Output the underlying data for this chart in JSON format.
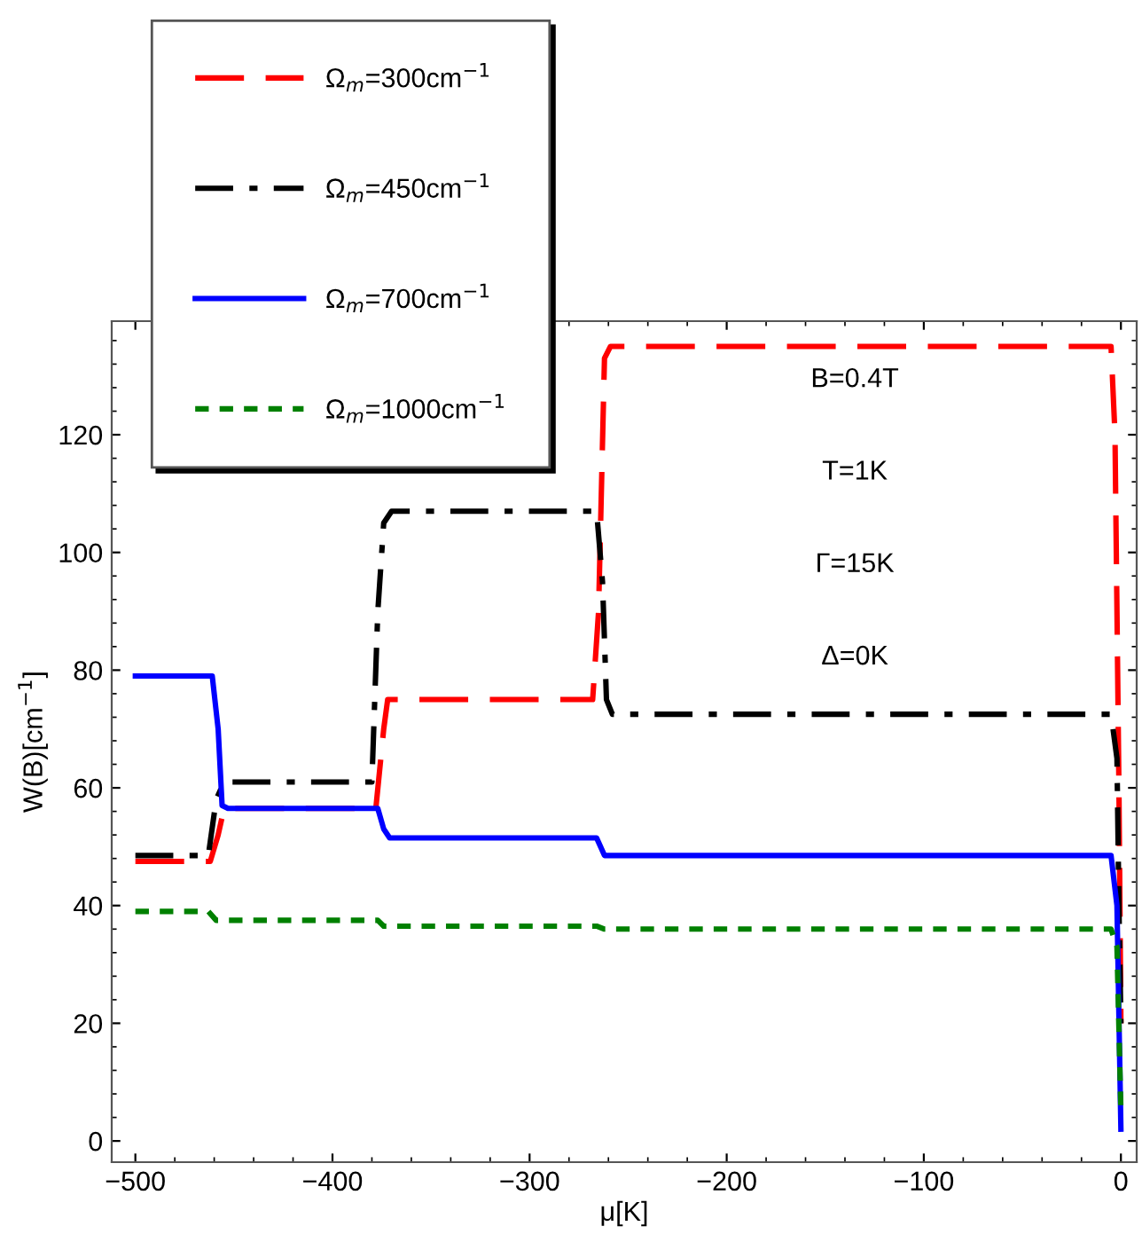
{
  "chart_data": {
    "type": "line",
    "xlabel": "μ[K]",
    "ylabel": "W(B)[cm$^{−1}$]",
    "xlim": [
      -512,
      8
    ],
    "ylim": [
      -3.6,
      139.3
    ],
    "xticks": [
      {
        "value": -500,
        "label": "−500"
      },
      {
        "value": -400,
        "label": "−400"
      },
      {
        "value": -300,
        "label": "−300"
      },
      {
        "value": -200,
        "label": "−200"
      },
      {
        "value": -100,
        "label": "−100"
      },
      0
    ],
    "yticks": [
      0,
      20,
      40,
      60,
      80,
      100,
      120
    ],
    "grid": false,
    "legend": "top left",
    "marker": "none",
    "annotations": [
      "B=0.4T",
      "T=1K",
      "Γ=15K",
      "Δ=0K"
    ],
    "series": [
      {
        "name": "Ω$_{m}$=300cm$^{−1}$",
        "color": "#ff0000",
        "line_style": "dashed",
        "x": [
          -500,
          -462,
          -458,
          -455,
          -378,
          -374,
          -372,
          -268,
          -265,
          -262,
          -259,
          -5,
          -3,
          -1,
          0
        ],
        "values": [
          47.5,
          47.5,
          52,
          56.5,
          56.5,
          70,
          75,
          75,
          90,
          133,
          135,
          135,
          120,
          60,
          20
        ]
      },
      {
        "name": "Ω$_{m}$=450cm$^{−1}$",
        "color": "#000000",
        "line_style": "dashdot",
        "x": [
          -500,
          -463,
          -459,
          -455,
          -380,
          -377,
          -374,
          -370,
          -266,
          -263,
          -261,
          -258,
          -5,
          -2,
          -1,
          0
        ],
        "values": [
          48.5,
          48.5,
          58,
          61,
          61,
          90,
          105,
          107,
          107,
          95,
          75,
          72.5,
          72.5,
          65,
          40,
          20
        ]
      },
      {
        "name": "Ω$_{m}$=700cm$^{−1}$",
        "color": "#0000ff",
        "line_style": "solid",
        "x": [
          -500,
          -461,
          -458,
          -456,
          -453,
          -377,
          -374,
          -371,
          -266,
          -262,
          -5,
          -2,
          0
        ],
        "values": [
          79,
          79,
          70,
          57,
          56.5,
          56.5,
          53,
          51.5,
          51.5,
          48.5,
          48.5,
          40,
          2
        ]
      },
      {
        "name": "Ω$_{m}$=1000cm$^{−1}$",
        "color": "#008000",
        "line_style": "dotted",
        "x": [
          -500,
          -463,
          -459,
          -377,
          -374,
          -266,
          -262,
          -5,
          -2,
          0
        ],
        "values": [
          39,
          39,
          37.5,
          37.5,
          36.5,
          36.5,
          36,
          36,
          33,
          5
        ]
      }
    ]
  }
}
